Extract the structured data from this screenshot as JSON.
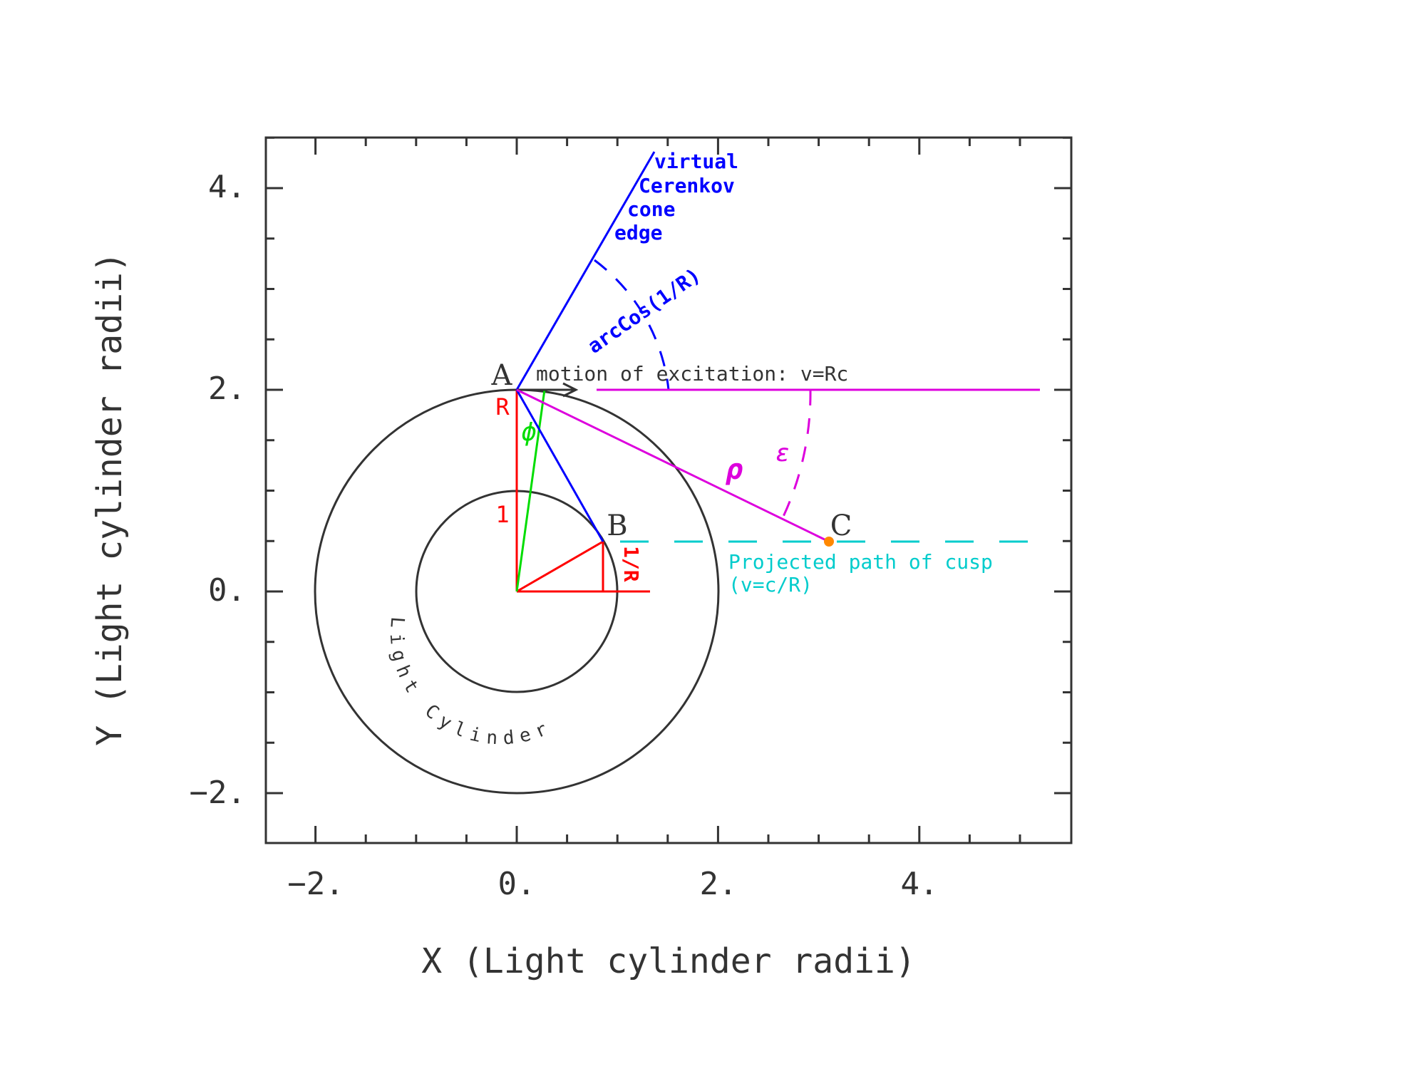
{
  "axes": {
    "x_title": "X (Light cylinder radii)",
    "y_title": "Y (Light cylinder radii)",
    "x_ticks": [
      "−2.",
      "0.",
      "2.",
      "4."
    ],
    "y_ticks": [
      "−2.",
      "0.",
      "2.",
      "4."
    ],
    "x_range": [
      -2.5,
      5.5
    ],
    "y_range": [
      -2.5,
      4.5
    ]
  },
  "points": {
    "a": "A",
    "b": "B",
    "c": "C"
  },
  "labels": {
    "cone_line1": "virtual",
    "cone_line2": "Cerenkov",
    "cone_line3": "cone",
    "cone_line4": "edge",
    "cone_angle": "arcCos(1/R)",
    "motion": "motion of excitation: v=Rc",
    "r_label": "R",
    "phi": "ϕ",
    "one": "1",
    "inv_r": "1/R",
    "rho": "ρ",
    "epsilon": "ε",
    "path_line1": "Projected path of cusp",
    "path_line2": "(v=c/R)",
    "light_cylinder": "Light Cylinder"
  },
  "colors": {
    "frame": "#333333",
    "red": "#ff0000",
    "green": "#00dd00",
    "blue": "#0000ff",
    "magenta": "#dd00dd",
    "cyan": "#00cccc",
    "orange": "#ff8800"
  }
}
